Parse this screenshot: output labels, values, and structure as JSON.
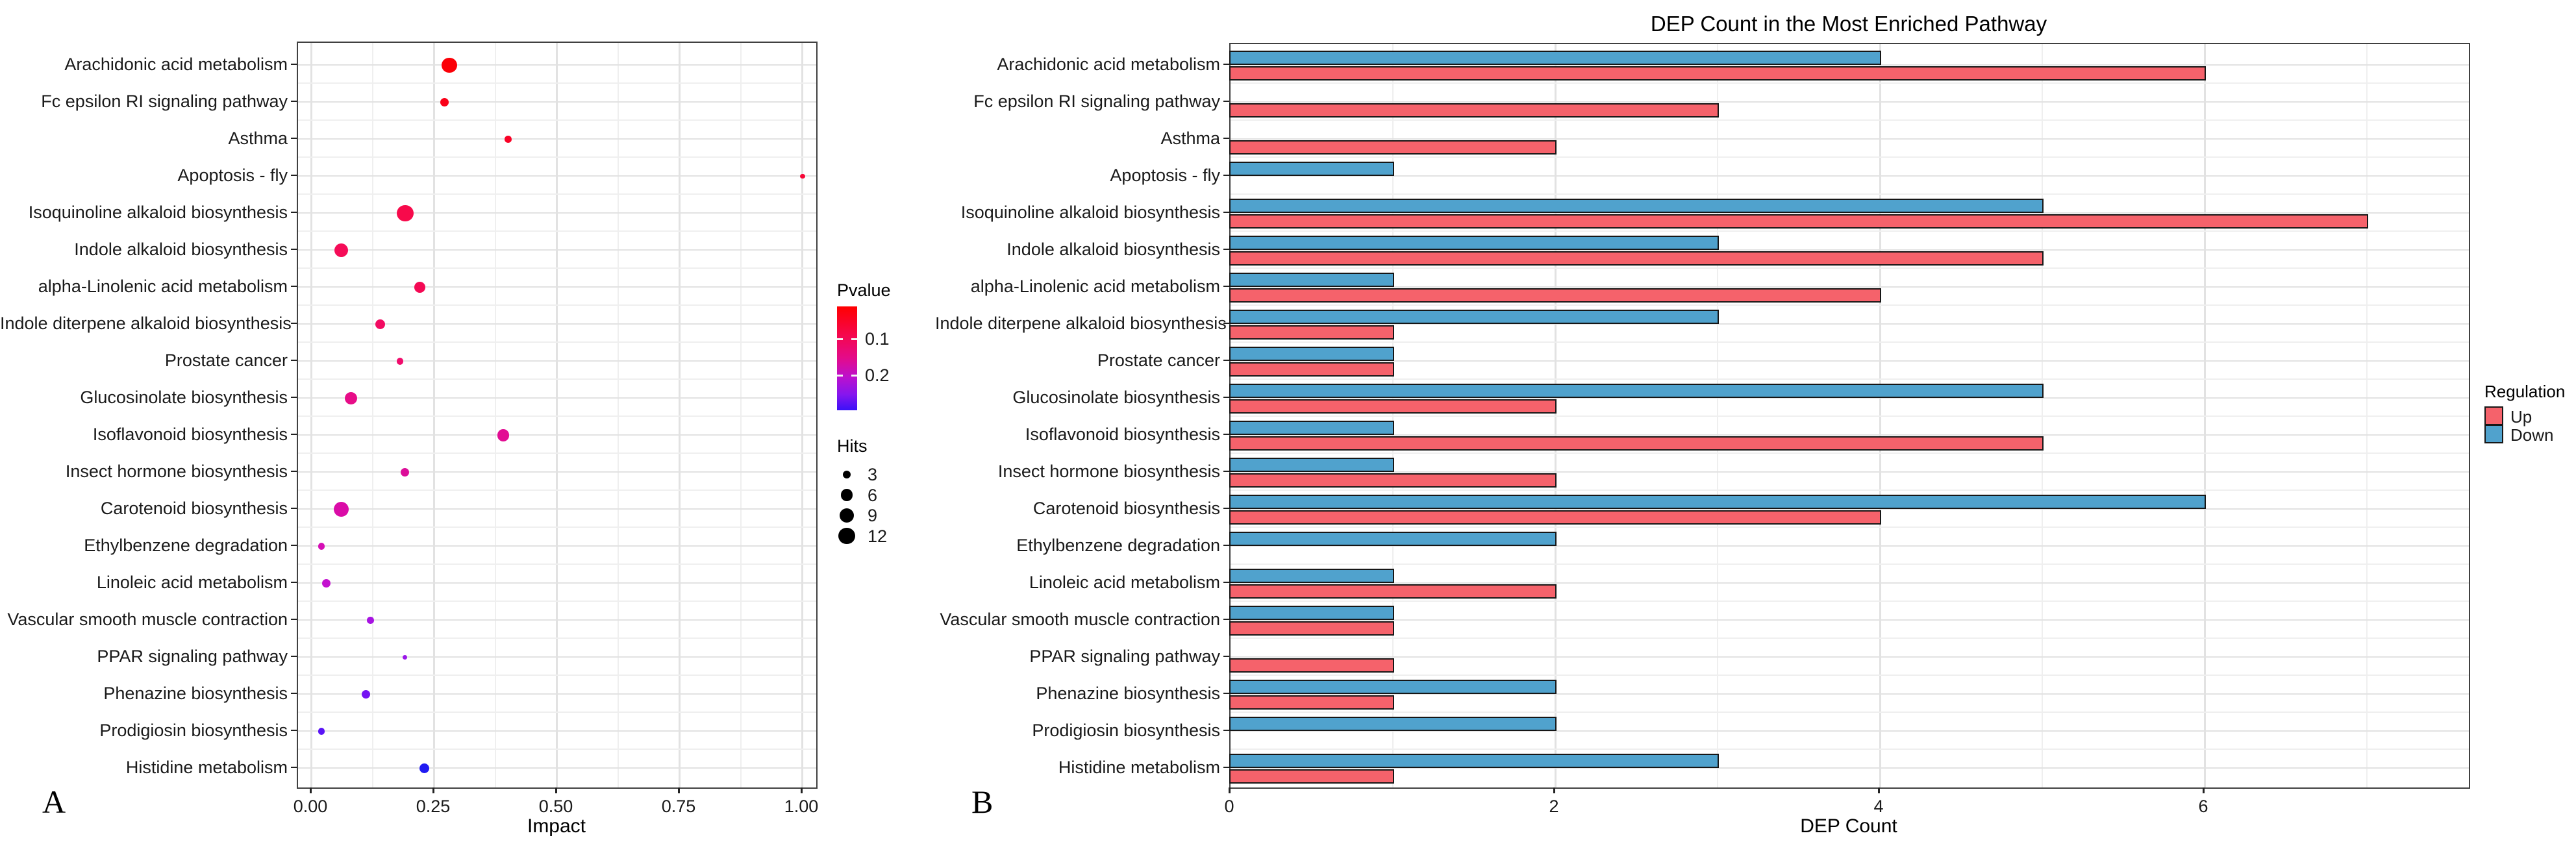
{
  "figure": {
    "panel_a": {
      "panel_label": "A",
      "xlabel": "Impact",
      "x_tick_labels": [
        "0.00",
        "0.25",
        "0.50",
        "0.75",
        "1.00"
      ],
      "legend_pvalue": {
        "title": "Pvalue",
        "tick_labels": [
          "0.1",
          "0.2"
        ],
        "gradient_stops": [
          "#FF0000",
          "#F5074E",
          "#E30B8B",
          "#BC11CD",
          "#8516EE",
          "#3A11F8"
        ]
      },
      "legend_hits": {
        "title": "Hits",
        "sizes": [
          3,
          6,
          9,
          12
        ]
      }
    },
    "panel_b": {
      "panel_label": "B",
      "title": "DEP Count in the Most Enriched Pathway",
      "xlabel": "DEP Count",
      "x_tick_labels": [
        "0",
        "2",
        "4",
        "6"
      ],
      "legend_regulation": {
        "title": "Regulation",
        "items": [
          {
            "label": "Up",
            "color": "#F5626B"
          },
          {
            "label": "Down",
            "color": "#50A2CD"
          }
        ]
      }
    }
  },
  "chart_data": [
    {
      "type": "scatter",
      "title": "",
      "xlabel": "Impact",
      "ylabel": "",
      "xlim": [
        0,
        1.0
      ],
      "x_ticks": [
        0,
        0.25,
        0.5,
        0.75,
        1.0
      ],
      "grid": "on",
      "color_scale": {
        "label": "Pvalue",
        "ticks": [
          0.1,
          0.2
        ],
        "low": "red",
        "high": "blue"
      },
      "size_scale": {
        "label": "Hits",
        "breaks": [
          3,
          6,
          9,
          12
        ]
      },
      "points": [
        {
          "pathway": "Arachidonic acid metabolism",
          "impact": 0.28,
          "hits": 10,
          "color": "#FB0007"
        },
        {
          "pathway": "Fc epsilon RI signaling pathway",
          "impact": 0.27,
          "hits": 3,
          "color": "#FA0018"
        },
        {
          "pathway": "Asthma",
          "impact": 0.4,
          "hits": 2,
          "color": "#F90226"
        },
        {
          "pathway": "Apoptosis - fly",
          "impact": 1.0,
          "hits": 1,
          "color": "#F70737"
        },
        {
          "pathway": "Isoquinoline alkaloid biosynthesis",
          "impact": 0.19,
          "hits": 12,
          "color": "#F70A4B"
        },
        {
          "pathway": "Indole alkaloid biosynthesis",
          "impact": 0.06,
          "hits": 8,
          "color": "#F50C58"
        },
        {
          "pathway": "alpha-Linolenic acid metabolism",
          "impact": 0.22,
          "hits": 5,
          "color": "#F40954"
        },
        {
          "pathway": "Indole diterpene alkaloid biosynthesis",
          "impact": 0.14,
          "hits": 4,
          "color": "#F20B62"
        },
        {
          "pathway": "Prostate cancer",
          "impact": 0.18,
          "hits": 2,
          "color": "#F00C6C"
        },
        {
          "pathway": "Glucosinolate biosynthesis",
          "impact": 0.08,
          "hits": 7,
          "color": "#E70D88"
        },
        {
          "pathway": "Isoflavonoid biosynthesis",
          "impact": 0.39,
          "hits": 6,
          "color": "#E20D93"
        },
        {
          "pathway": "Insect hormone biosynthesis",
          "impact": 0.19,
          "hits": 3,
          "color": "#DC0E99"
        },
        {
          "pathway": "Carotenoid biosynthesis",
          "impact": 0.06,
          "hits": 10,
          "color": "#DA0CA7"
        },
        {
          "pathway": "Ethylbenzene degradation",
          "impact": 0.02,
          "hits": 2,
          "color": "#D50FB5"
        },
        {
          "pathway": "Linoleic acid metabolism",
          "impact": 0.03,
          "hits": 3,
          "color": "#C312CF"
        },
        {
          "pathway": "Vascular smooth muscle contraction",
          "impact": 0.12,
          "hits": 2,
          "color": "#A713E2"
        },
        {
          "pathway": "PPAR signaling pathway",
          "impact": 0.19,
          "hits": 1,
          "color": "#9A17E9"
        },
        {
          "pathway": "Phenazine biosynthesis",
          "impact": 0.11,
          "hits": 3,
          "color": "#7513F2"
        },
        {
          "pathway": "Prodigiosin biosynthesis",
          "impact": 0.02,
          "hits": 2,
          "color": "#5A14F6"
        },
        {
          "pathway": "Histidine metabolism",
          "impact": 0.23,
          "hits": 4,
          "color": "#201BF2"
        }
      ]
    },
    {
      "type": "bar",
      "orientation": "horizontal",
      "title": "DEP Count in the Most Enriched Pathway",
      "xlabel": "DEP Count",
      "ylabel": "",
      "xlim": [
        0,
        7.6
      ],
      "x_ticks": [
        0,
        2,
        4,
        6
      ],
      "grid": "on",
      "legend_position": "right",
      "categories": [
        "Arachidonic acid metabolism",
        "Fc epsilon RI signaling pathway",
        "Asthma",
        "Apoptosis - fly",
        "Isoquinoline alkaloid biosynthesis",
        "Indole alkaloid biosynthesis",
        "alpha-Linolenic acid metabolism",
        "Indole diterpene alkaloid biosynthesis",
        "Prostate cancer",
        "Glucosinolate biosynthesis",
        "Isoflavonoid biosynthesis",
        "Insect hormone biosynthesis",
        "Carotenoid biosynthesis",
        "Ethylbenzene degradation",
        "Linoleic acid metabolism",
        "Vascular smooth muscle contraction",
        "PPAR signaling pathway",
        "Phenazine biosynthesis",
        "Prodigiosin biosynthesis",
        "Histidine metabolism"
      ],
      "series": [
        {
          "name": "Down",
          "color": "#50A2CD",
          "values": [
            4,
            null,
            null,
            1,
            5,
            3,
            1,
            3,
            1,
            5,
            1,
            1,
            6,
            2,
            1,
            1,
            null,
            2,
            2,
            3
          ]
        },
        {
          "name": "Up",
          "color": "#F5626B",
          "values": [
            6,
            3,
            2,
            null,
            7,
            5,
            4,
            1,
            1,
            2,
            5,
            2,
            4,
            null,
            2,
            1,
            1,
            1,
            null,
            1
          ]
        }
      ]
    }
  ]
}
